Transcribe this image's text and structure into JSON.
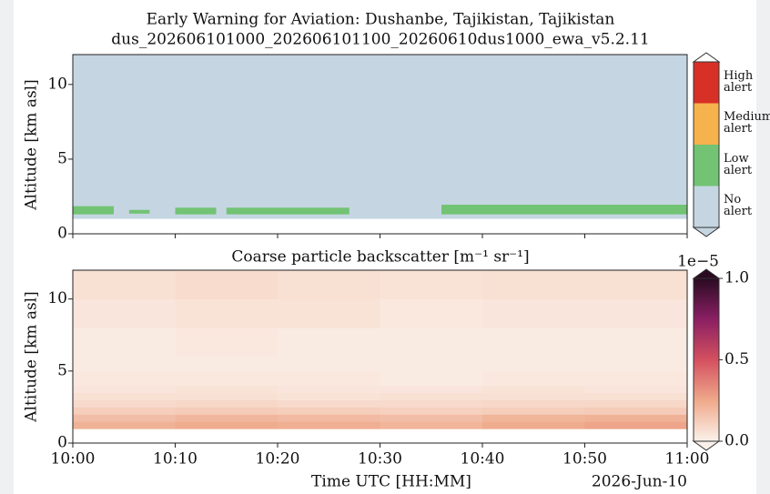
{
  "chart_data": [
    {
      "type": "bands",
      "title": "Early Warning for Aviation: Dushanbe, Tajikistan, Tajikistan",
      "subtitle": "dus_202606101000_202606101100_20260610dus1000_ewa_v5.2.11",
      "ylabel": "Altitude [km asl]",
      "xlim": [
        0,
        60
      ],
      "xticks": [
        0,
        10,
        20,
        30,
        40,
        50,
        60
      ],
      "ylim": [
        0,
        12
      ],
      "yticks": [
        0,
        5,
        10
      ],
      "classes": [
        {
          "name": "High alert",
          "color": "#d73027"
        },
        {
          "name": "Medium alert",
          "color": "#f6b24c"
        },
        {
          "name": "Low alert",
          "color": "#72c374"
        },
        {
          "name": "No alert",
          "color": "#c5d6e2"
        }
      ],
      "ground_altitude": 1.0,
      "low_alert_start": [
        0,
        5.5,
        10,
        15,
        36
      ],
      "low_alert_end": [
        4,
        7.5,
        14,
        27,
        60
      ],
      "low_alert_base": [
        1.3,
        1.35,
        1.3,
        1.3,
        1.3
      ],
      "low_alert_top": [
        1.85,
        1.6,
        1.75,
        1.75,
        1.95
      ]
    },
    {
      "type": "heatmap",
      "title": "Coarse particle backscatter [m⁻¹ sr⁻¹]",
      "ylabel": "Altitude [km asl]",
      "xlabel": "Time UTC [HH:MM]",
      "date_label": "2026-Jun-10",
      "xlim": [
        0,
        60
      ],
      "xticks": [
        {
          "value": 0,
          "label": "10:00"
        },
        {
          "value": 10,
          "label": "10:10"
        },
        {
          "value": 20,
          "label": "10:20"
        },
        {
          "value": 30,
          "label": "10:30"
        },
        {
          "value": 40,
          "label": "10:40"
        },
        {
          "value": 50,
          "label": "10:50"
        },
        {
          "value": 60,
          "label": "11:00"
        }
      ],
      "ylim": [
        0,
        12
      ],
      "yticks": [
        0,
        5,
        10
      ],
      "time_bins": [
        0,
        10,
        20,
        30,
        40,
        50,
        60
      ],
      "altitude_bins": [
        1,
        1.5,
        2,
        2.5,
        3,
        3.5,
        4,
        5,
        6,
        8,
        10,
        12
      ],
      "z": [
        [
          0.22,
          0.24,
          0.23,
          0.21,
          0.24,
          0.26
        ],
        [
          0.18,
          0.2,
          0.19,
          0.18,
          0.21,
          0.22
        ],
        [
          0.12,
          0.13,
          0.12,
          0.11,
          0.12,
          0.13
        ],
        [
          0.08,
          0.09,
          0.08,
          0.08,
          0.09,
          0.09
        ],
        [
          0.06,
          0.06,
          0.05,
          0.06,
          0.06,
          0.06
        ],
        [
          0.04,
          0.05,
          0.04,
          0.04,
          0.05,
          0.04
        ],
        [
          0.03,
          0.03,
          0.03,
          0.02,
          0.03,
          0.03
        ],
        [
          0.02,
          0.02,
          0.02,
          0.02,
          0.02,
          0.02
        ],
        [
          0.02,
          0.03,
          0.02,
          0.02,
          0.02,
          0.02
        ],
        [
          0.04,
          0.05,
          0.05,
          0.03,
          0.04,
          0.04
        ],
        [
          0.06,
          0.07,
          0.06,
          0.05,
          0.06,
          0.06
        ]
      ],
      "colormap": [
        "#fbf1ea",
        "#efa98b",
        "#d4505f",
        "#8a1f63",
        "#2a0b22"
      ],
      "colorbar_lim": [
        0,
        1
      ],
      "colorbar_ticks": [
        {
          "value": 0,
          "label": "0.0"
        },
        {
          "value": 0.5,
          "label": "0.5"
        },
        {
          "value": 1,
          "label": "1.0"
        }
      ],
      "colorbar_offset_label": "1e−5"
    }
  ]
}
